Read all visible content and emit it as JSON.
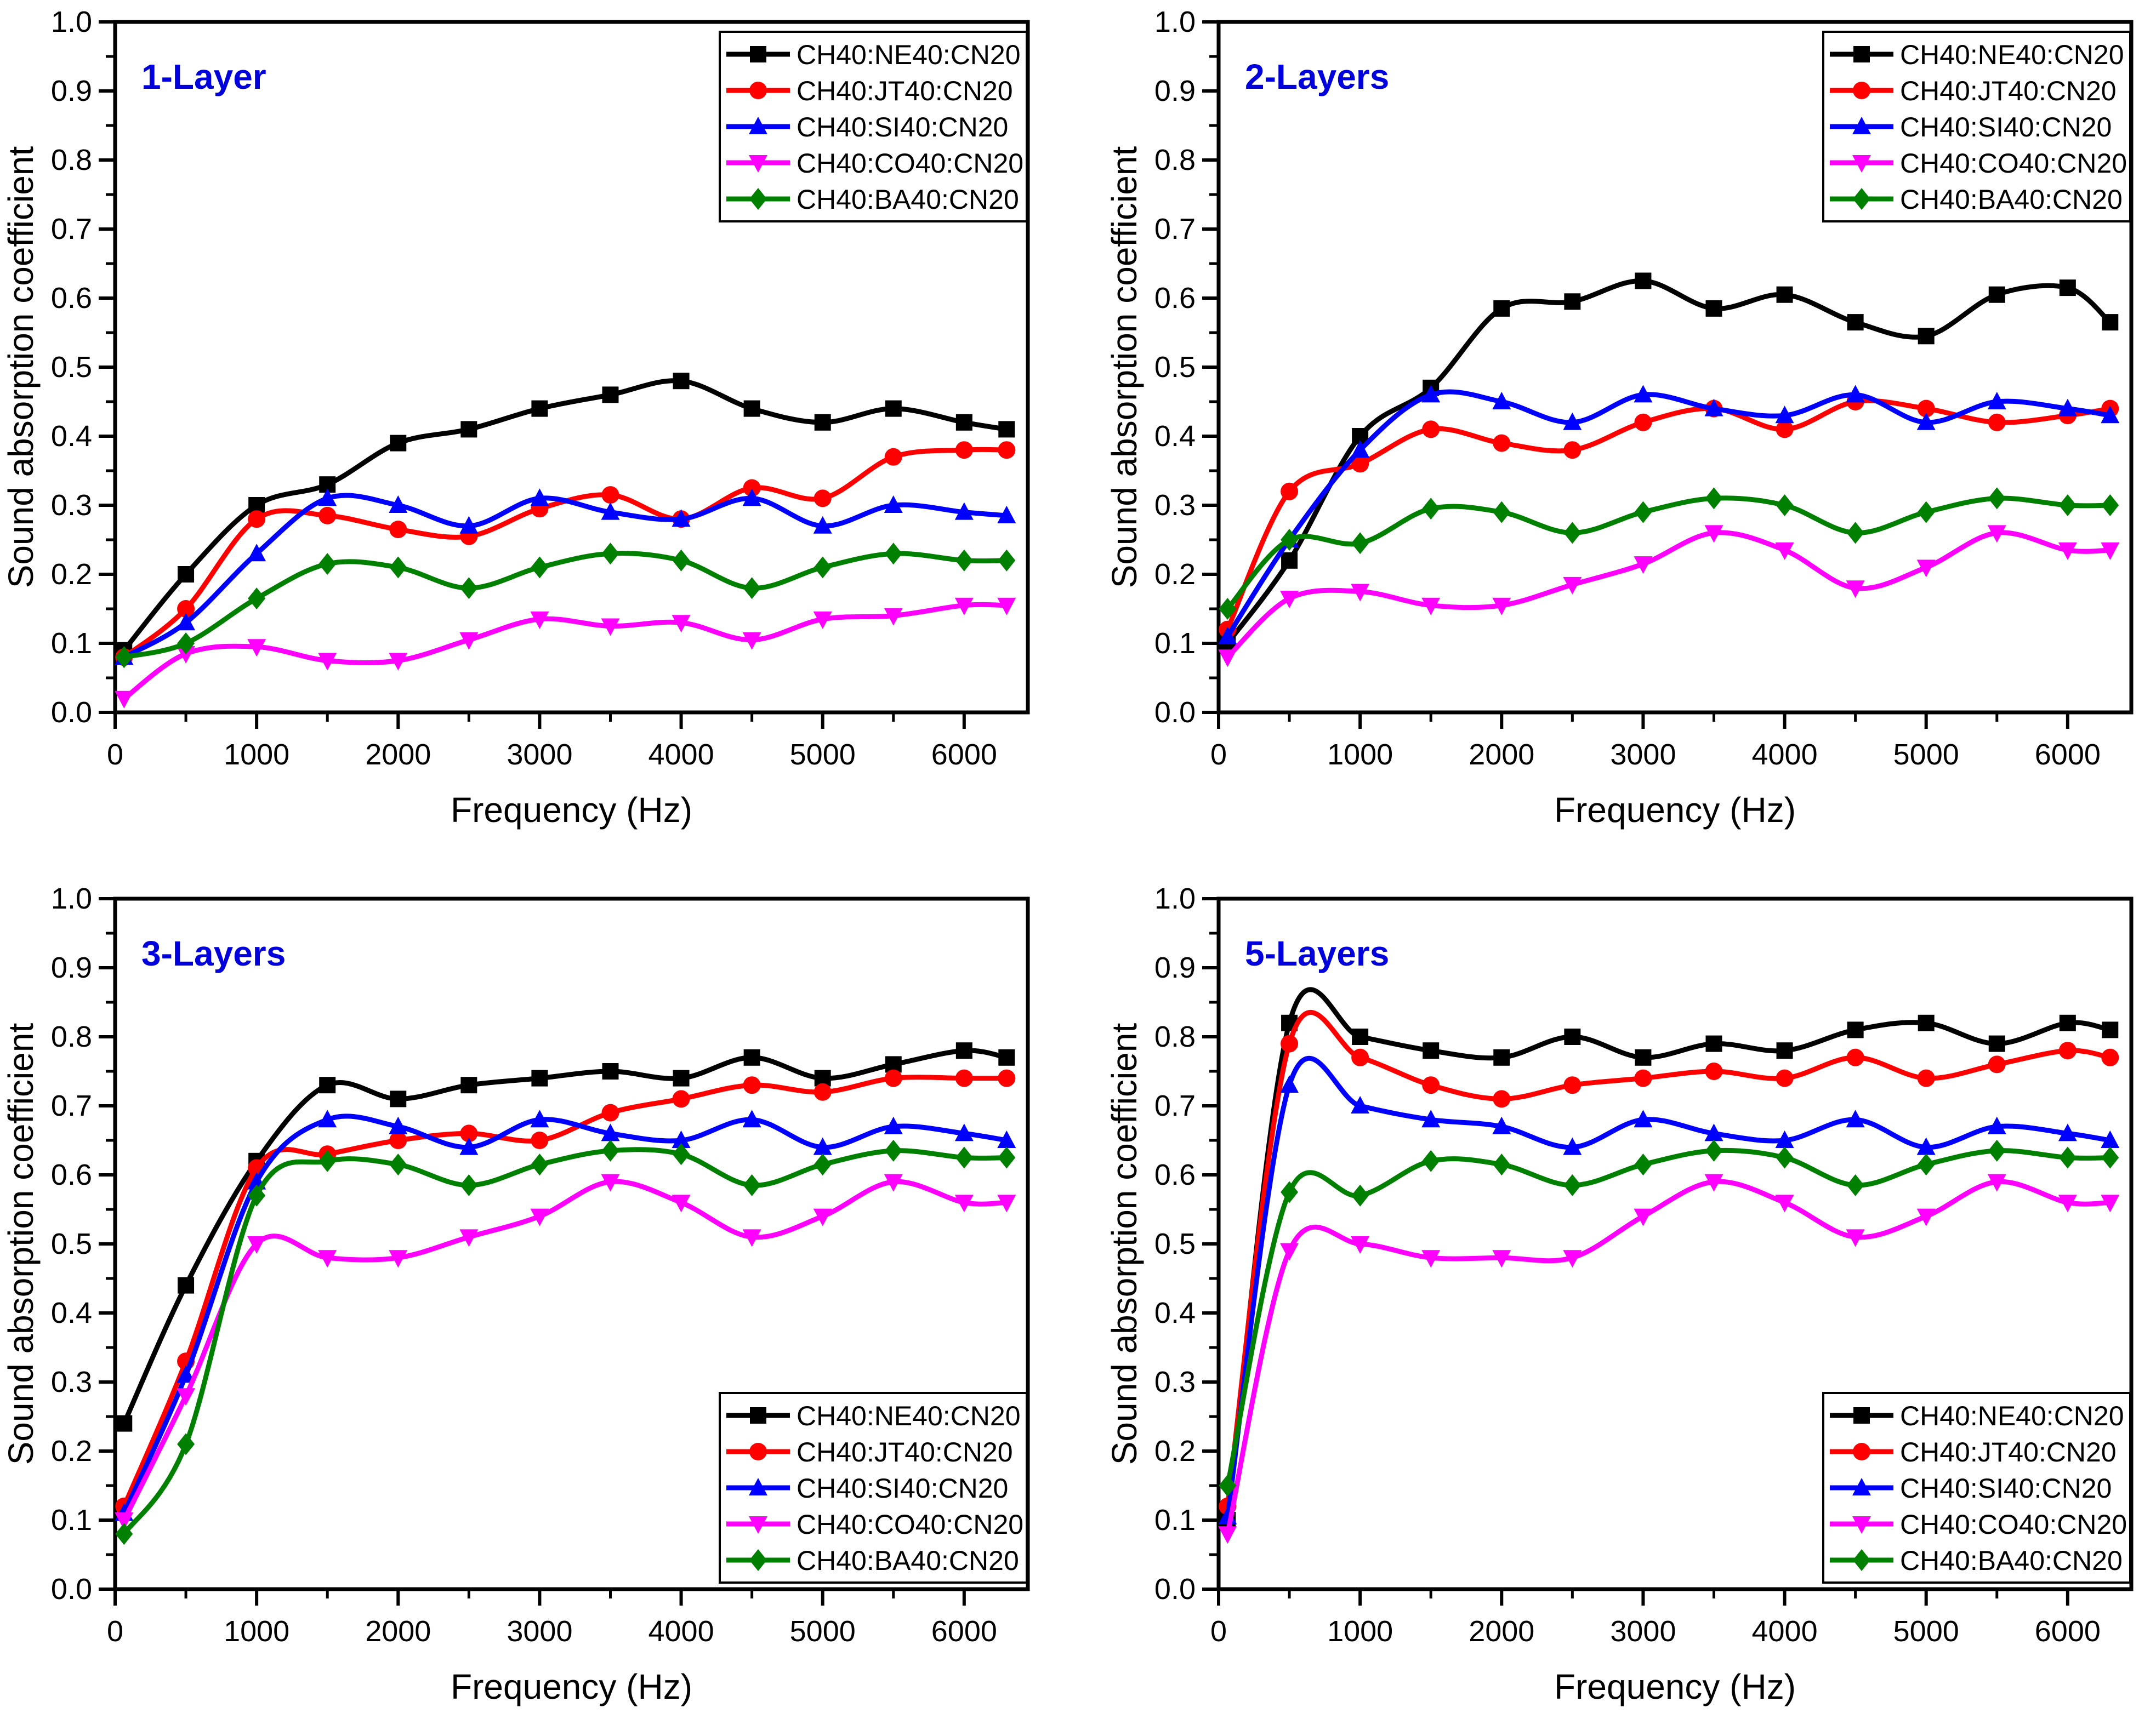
{
  "figure": {
    "background": "#ffffff",
    "series_colors": {
      "CH40:NE40:CN20": "#000000",
      "CH40:JT40:CN20": "#ff0000",
      "CH40:SI40:CN20": "#0000ff",
      "CH40:CO40:CN20": "#ff00ff",
      "CH40:BA40:CN20": "#008000"
    },
    "title_color": "#0000dd"
  },
  "chart_data": [
    {
      "type": "line",
      "title": "1-Layer",
      "xlabel": "Frequency (Hz)",
      "ylabel": "Sound absorption coefficient",
      "xlim": [
        0,
        6450
      ],
      "ylim": [
        0,
        1.0
      ],
      "xticks_major": [
        0,
        1000,
        2000,
        3000,
        4000,
        5000,
        6000
      ],
      "xtick_minor_step": 500,
      "ytick_major_step": 0.1,
      "ytick_minor_step": 0.05,
      "grid": false,
      "legend_position": "top-right",
      "x": [
        63,
        500,
        1000,
        1500,
        2000,
        2500,
        3000,
        3500,
        4000,
        4500,
        5000,
        5500,
        6000,
        6300
      ],
      "series": [
        {
          "name": "CH40:NE40:CN20",
          "color": "#000000",
          "marker": "square",
          "values": [
            0.09,
            0.2,
            0.3,
            0.33,
            0.39,
            0.41,
            0.44,
            0.46,
            0.48,
            0.44,
            0.42,
            0.44,
            0.42,
            0.41
          ]
        },
        {
          "name": "CH40:JT40:CN20",
          "color": "#ff0000",
          "marker": "circle",
          "values": [
            0.08,
            0.15,
            0.28,
            0.285,
            0.265,
            0.255,
            0.295,
            0.315,
            0.28,
            0.325,
            0.31,
            0.37,
            0.38,
            0.38
          ]
        },
        {
          "name": "CH40:SI40:CN20",
          "color": "#0000ff",
          "marker": "triangle-up",
          "values": [
            0.08,
            0.13,
            0.23,
            0.31,
            0.3,
            0.27,
            0.31,
            0.29,
            0.28,
            0.31,
            0.27,
            0.3,
            0.29,
            0.285
          ]
        },
        {
          "name": "CH40:CO40:CN20",
          "color": "#ff00ff",
          "marker": "triangle-down",
          "values": [
            0.02,
            0.085,
            0.095,
            0.075,
            0.075,
            0.105,
            0.135,
            0.125,
            0.13,
            0.105,
            0.135,
            0.14,
            0.155,
            0.155
          ]
        },
        {
          "name": "CH40:BA40:CN20",
          "color": "#008000",
          "marker": "diamond",
          "values": [
            0.08,
            0.1,
            0.165,
            0.215,
            0.21,
            0.18,
            0.21,
            0.23,
            0.22,
            0.18,
            0.21,
            0.23,
            0.22,
            0.22
          ]
        }
      ]
    },
    {
      "type": "line",
      "title": "2-Layers",
      "xlabel": "Frequency (Hz)",
      "ylabel": "Sound absorption coefficient",
      "xlim": [
        0,
        6450
      ],
      "ylim": [
        0,
        1.0
      ],
      "xticks_major": [
        0,
        1000,
        2000,
        3000,
        4000,
        5000,
        6000
      ],
      "xtick_minor_step": 500,
      "ytick_major_step": 0.1,
      "ytick_minor_step": 0.05,
      "grid": false,
      "legend_position": "top-right",
      "x": [
        63,
        500,
        1000,
        1500,
        2000,
        2500,
        3000,
        3500,
        4000,
        4500,
        5000,
        5500,
        6000,
        6300
      ],
      "series": [
        {
          "name": "CH40:NE40:CN20",
          "color": "#000000",
          "marker": "square",
          "values": [
            0.1,
            0.22,
            0.4,
            0.47,
            0.585,
            0.595,
            0.625,
            0.585,
            0.605,
            0.565,
            0.545,
            0.605,
            0.615,
            0.565
          ]
        },
        {
          "name": "CH40:JT40:CN20",
          "color": "#ff0000",
          "marker": "circle",
          "values": [
            0.12,
            0.32,
            0.36,
            0.41,
            0.39,
            0.38,
            0.42,
            0.44,
            0.41,
            0.45,
            0.44,
            0.42,
            0.43,
            0.44
          ]
        },
        {
          "name": "CH40:SI40:CN20",
          "color": "#0000ff",
          "marker": "triangle-up",
          "values": [
            0.11,
            0.25,
            0.38,
            0.46,
            0.45,
            0.42,
            0.46,
            0.44,
            0.43,
            0.46,
            0.42,
            0.45,
            0.44,
            0.43
          ]
        },
        {
          "name": "CH40:CO40:CN20",
          "color": "#ff00ff",
          "marker": "triangle-down",
          "values": [
            0.08,
            0.165,
            0.175,
            0.155,
            0.155,
            0.185,
            0.215,
            0.26,
            0.235,
            0.18,
            0.21,
            0.26,
            0.235,
            0.235
          ]
        },
        {
          "name": "CH40:BA40:CN20",
          "color": "#008000",
          "marker": "diamond",
          "values": [
            0.15,
            0.25,
            0.245,
            0.295,
            0.29,
            0.26,
            0.29,
            0.31,
            0.3,
            0.26,
            0.29,
            0.31,
            0.3,
            0.3
          ]
        }
      ]
    },
    {
      "type": "line",
      "title": "3-Layers",
      "xlabel": "Frequency (Hz)",
      "ylabel": "Sound absorption coefficient",
      "xlim": [
        0,
        6450
      ],
      "ylim": [
        0,
        1.0
      ],
      "xticks_major": [
        0,
        1000,
        2000,
        3000,
        4000,
        5000,
        6000
      ],
      "xtick_minor_step": 500,
      "ytick_major_step": 0.1,
      "ytick_minor_step": 0.05,
      "grid": false,
      "legend_position": "bottom-right",
      "x": [
        63,
        500,
        1000,
        1500,
        2000,
        2500,
        3000,
        3500,
        4000,
        4500,
        5000,
        5500,
        6000,
        6300
      ],
      "series": [
        {
          "name": "CH40:NE40:CN20",
          "color": "#000000",
          "marker": "square",
          "values": [
            0.24,
            0.44,
            0.62,
            0.73,
            0.71,
            0.73,
            0.74,
            0.75,
            0.74,
            0.77,
            0.74,
            0.76,
            0.78,
            0.77
          ]
        },
        {
          "name": "CH40:JT40:CN20",
          "color": "#ff0000",
          "marker": "circle",
          "values": [
            0.12,
            0.33,
            0.61,
            0.63,
            0.65,
            0.66,
            0.65,
            0.69,
            0.71,
            0.73,
            0.72,
            0.74,
            0.74,
            0.74
          ]
        },
        {
          "name": "CH40:SI40:CN20",
          "color": "#0000ff",
          "marker": "triangle-up",
          "values": [
            0.11,
            0.31,
            0.59,
            0.68,
            0.67,
            0.64,
            0.68,
            0.66,
            0.65,
            0.68,
            0.64,
            0.67,
            0.66,
            0.65
          ]
        },
        {
          "name": "CH40:CO40:CN20",
          "color": "#ff00ff",
          "marker": "triangle-down",
          "values": [
            0.1,
            0.28,
            0.5,
            0.48,
            0.48,
            0.51,
            0.54,
            0.59,
            0.56,
            0.51,
            0.54,
            0.59,
            0.56,
            0.56
          ]
        },
        {
          "name": "CH40:BA40:CN20",
          "color": "#008000",
          "marker": "diamond",
          "values": [
            0.08,
            0.21,
            0.57,
            0.62,
            0.615,
            0.585,
            0.615,
            0.635,
            0.63,
            0.585,
            0.615,
            0.635,
            0.625,
            0.625
          ]
        }
      ]
    },
    {
      "type": "line",
      "title": "5-Layers",
      "xlabel": "Frequency (Hz)",
      "ylabel": "Sound absorption coefficient",
      "xlim": [
        0,
        6450
      ],
      "ylim": [
        0,
        1.0
      ],
      "xticks_major": [
        0,
        1000,
        2000,
        3000,
        4000,
        5000,
        6000
      ],
      "xtick_minor_step": 500,
      "ytick_major_step": 0.1,
      "ytick_minor_step": 0.05,
      "grid": false,
      "legend_position": "bottom-right",
      "x": [
        63,
        500,
        1000,
        1500,
        2000,
        2500,
        3000,
        3500,
        4000,
        4500,
        5000,
        5500,
        6000,
        6300
      ],
      "series": [
        {
          "name": "CH40:NE40:CN20",
          "color": "#000000",
          "marker": "square",
          "values": [
            0.1,
            0.82,
            0.8,
            0.78,
            0.77,
            0.8,
            0.77,
            0.79,
            0.78,
            0.81,
            0.82,
            0.79,
            0.82,
            0.81
          ]
        },
        {
          "name": "CH40:JT40:CN20",
          "color": "#ff0000",
          "marker": "circle",
          "values": [
            0.12,
            0.79,
            0.77,
            0.73,
            0.71,
            0.73,
            0.74,
            0.75,
            0.74,
            0.77,
            0.74,
            0.76,
            0.78,
            0.77
          ]
        },
        {
          "name": "CH40:SI40:CN20",
          "color": "#0000ff",
          "marker": "triangle-up",
          "values": [
            0.105,
            0.73,
            0.7,
            0.68,
            0.67,
            0.64,
            0.68,
            0.66,
            0.65,
            0.68,
            0.64,
            0.67,
            0.66,
            0.65
          ]
        },
        {
          "name": "CH40:CO40:CN20",
          "color": "#ff00ff",
          "marker": "triangle-down",
          "values": [
            0.08,
            0.49,
            0.5,
            0.48,
            0.48,
            0.48,
            0.54,
            0.59,
            0.56,
            0.51,
            0.54,
            0.59,
            0.56,
            0.56
          ]
        },
        {
          "name": "CH40:BA40:CN20",
          "color": "#008000",
          "marker": "diamond",
          "values": [
            0.15,
            0.575,
            0.57,
            0.62,
            0.615,
            0.585,
            0.615,
            0.635,
            0.625,
            0.585,
            0.615,
            0.635,
            0.625,
            0.625
          ]
        }
      ]
    }
  ]
}
